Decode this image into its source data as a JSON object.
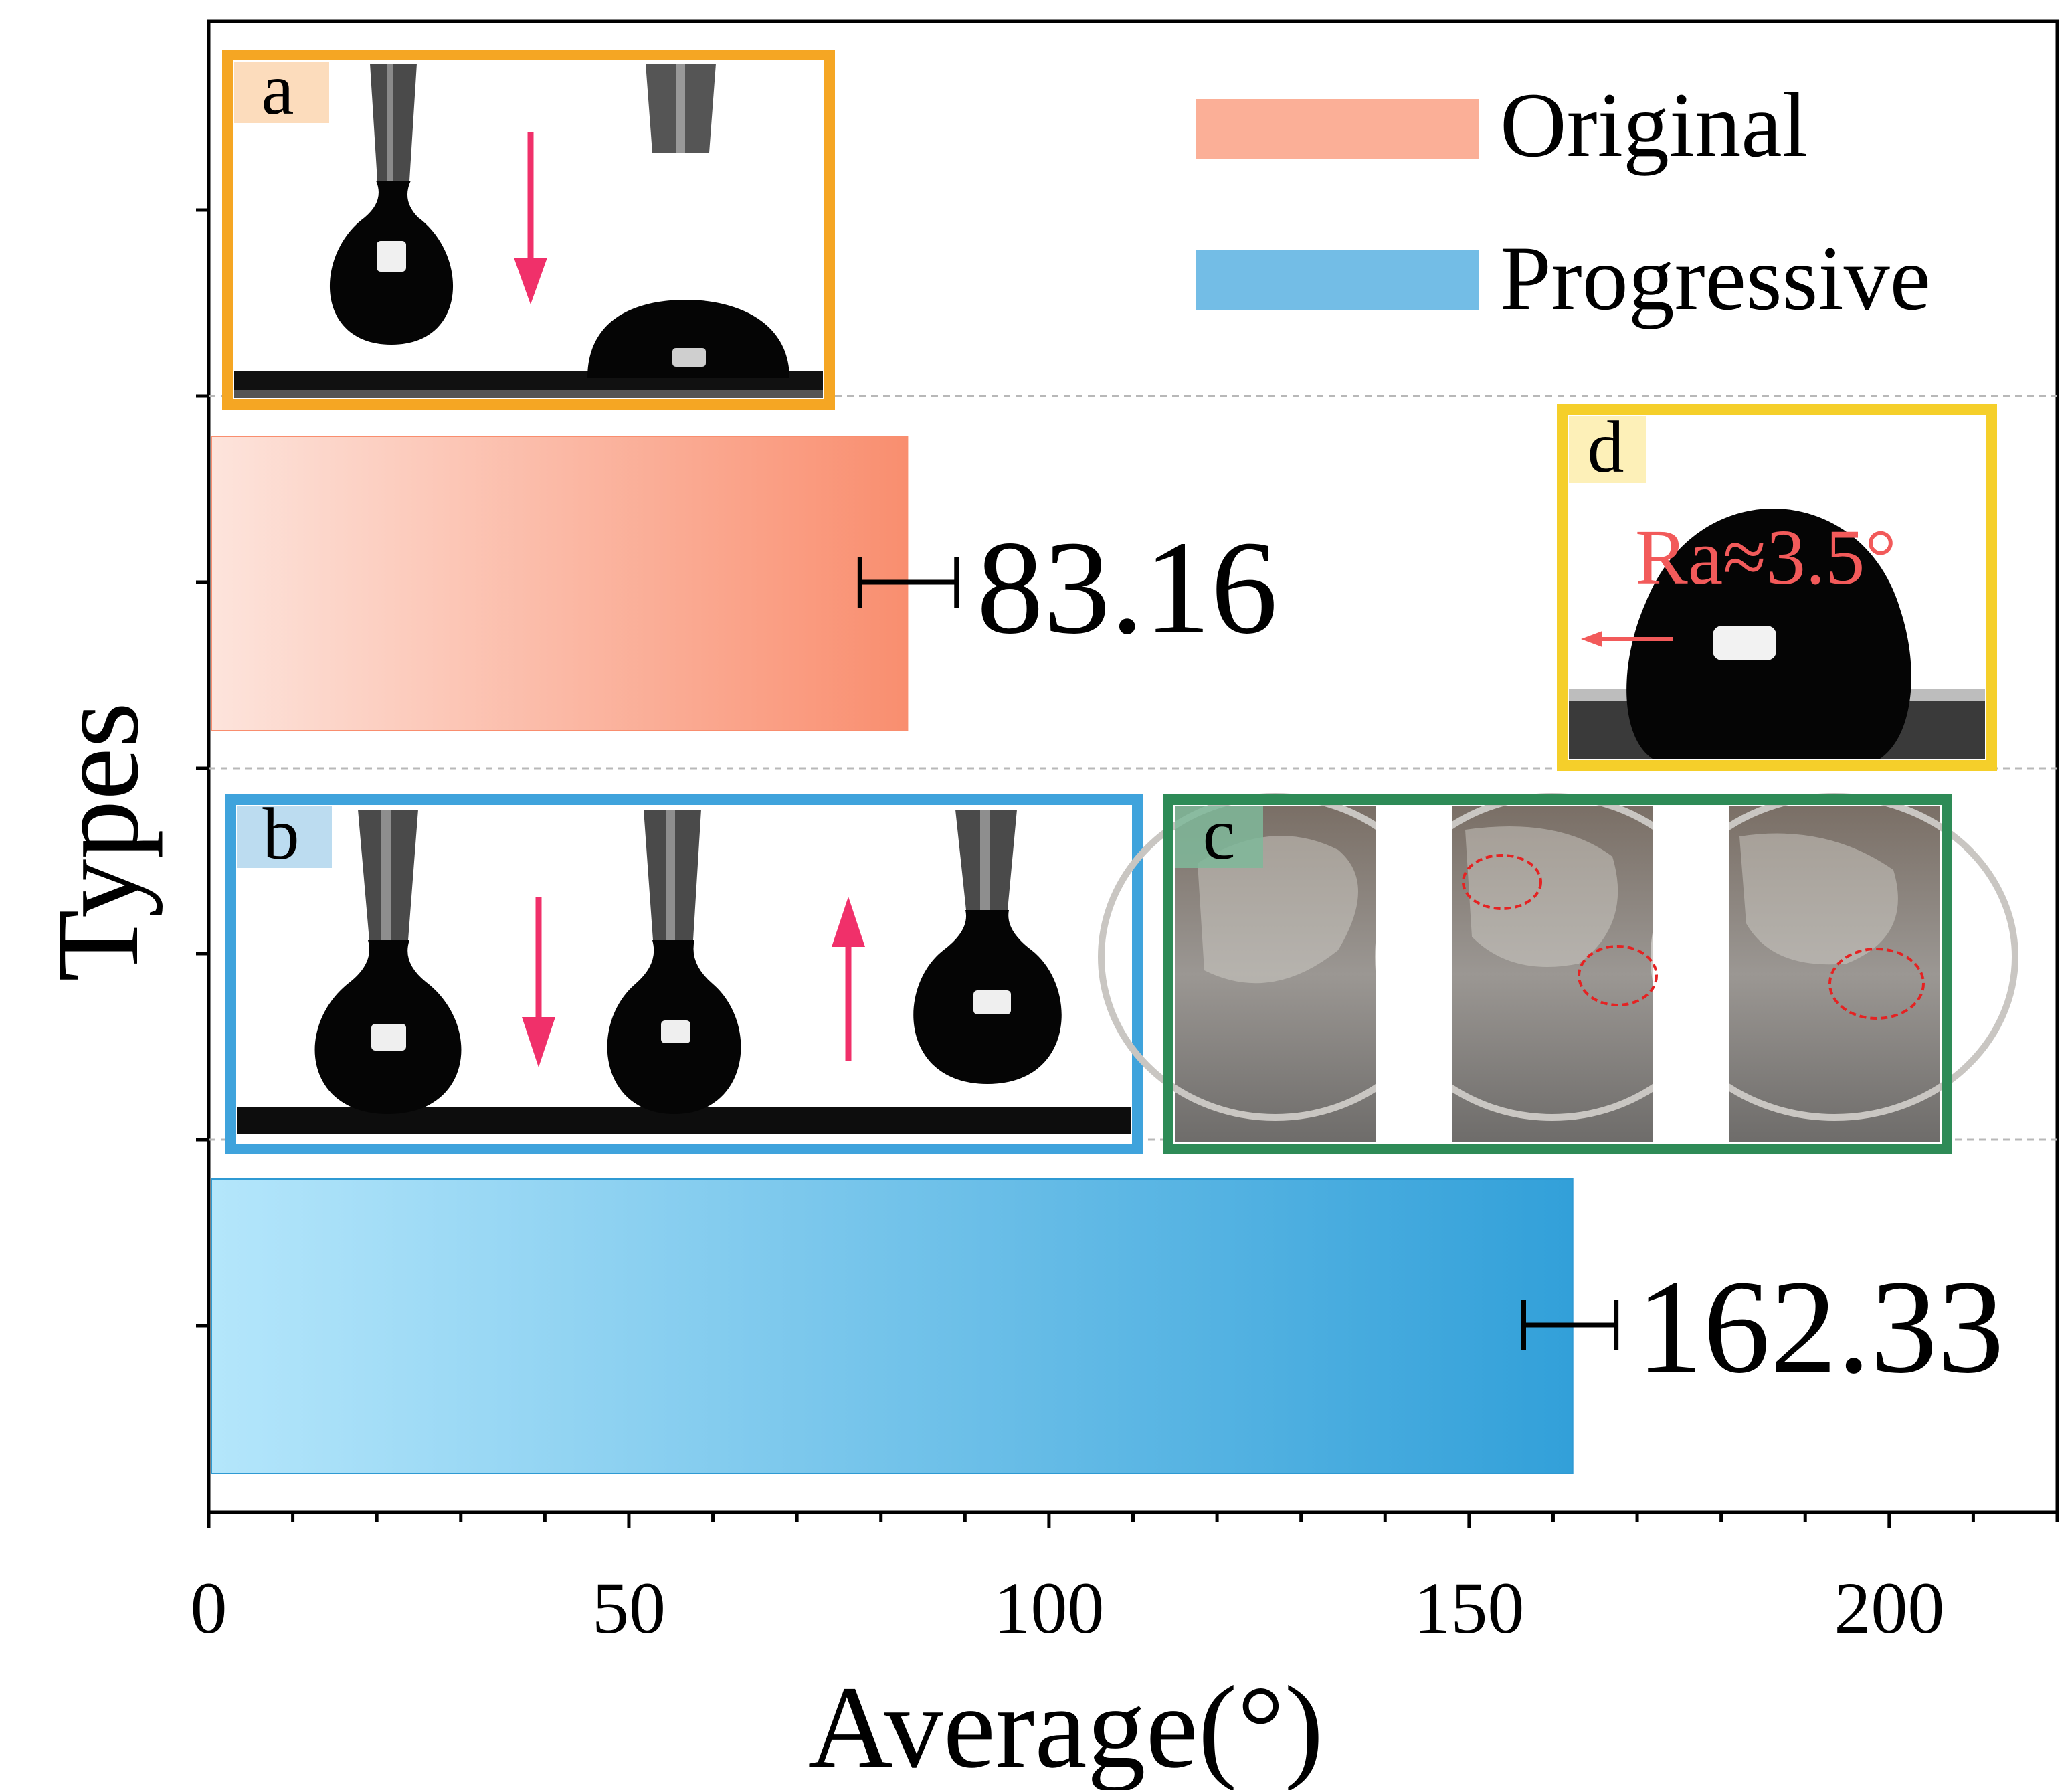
{
  "chart_data": {
    "type": "bar",
    "orientation": "horizontal",
    "categories": [
      "Original",
      "Progressive"
    ],
    "values": [
      83.16,
      162.33
    ],
    "errors": [
      {
        "low": 77.5,
        "high": 89.0
      },
      {
        "low": 156.5,
        "high": 167.5
      }
    ],
    "value_labels": [
      "83.16",
      "162.33"
    ],
    "xlabel": "Average(°)",
    "ylabel": "Types",
    "xlim": [
      0,
      220
    ],
    "xticks": [
      0,
      50,
      100,
      150,
      200
    ],
    "xtick_labels": [
      "0",
      "50",
      "100",
      "150",
      "200"
    ],
    "minor_xtick_step": 10,
    "legend": [
      {
        "name": "Original",
        "color": "#fbaf97"
      },
      {
        "name": "Progressive",
        "color": "#73bde6"
      }
    ],
    "legend_position": "top-right",
    "colors": {
      "original_start": "#fde4dc",
      "original_end": "#f98e6f",
      "progressive_start": "#b4e6fb",
      "progressive_end": "#32a0d9",
      "inset_a": "#f5a623",
      "inset_b": "#3fa3dc",
      "inset_c": "#2e8b57",
      "inset_d": "#f5cf2a",
      "arrow": "#f0306a",
      "annotation": "#f25a5a"
    }
  },
  "insets": {
    "a": {
      "label": "a"
    },
    "b": {
      "label": "b"
    },
    "c": {
      "label": "c"
    },
    "d": {
      "label": "d",
      "annotation": "Ra≈3.5°"
    }
  }
}
